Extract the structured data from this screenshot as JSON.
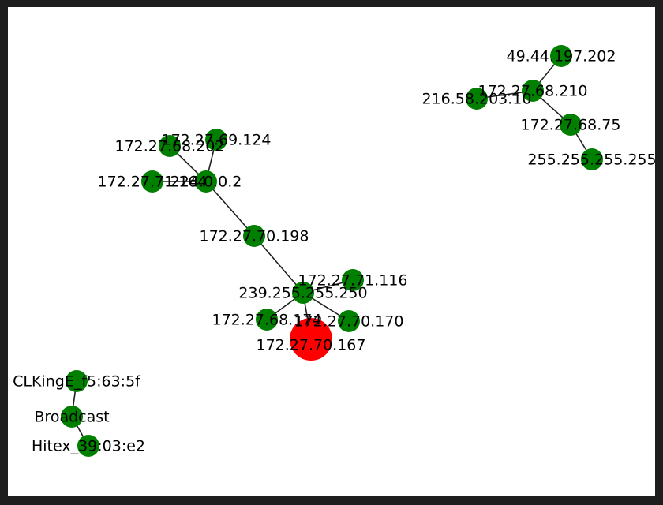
{
  "colors": {
    "frame": "#1e1e1e",
    "background": "#ffffff",
    "node": "#007f00",
    "highlight_node": "#ff0000",
    "edge": "#222222",
    "label": "#000000"
  },
  "graph": {
    "nodes": [
      {
        "id": "n1",
        "label": "49.44.197.202",
        "highlight": false
      },
      {
        "id": "n2",
        "label": "172.27.68.210",
        "highlight": false
      },
      {
        "id": "n3",
        "label": "216.58.203.10",
        "highlight": false
      },
      {
        "id": "n4",
        "label": "172.27.68.75",
        "highlight": false
      },
      {
        "id": "n5",
        "label": "255.255.255.255",
        "highlight": false
      },
      {
        "id": "n6",
        "label": "172.27.68.202",
        "highlight": false
      },
      {
        "id": "n7",
        "label": "172.27.69.124",
        "highlight": false
      },
      {
        "id": "n8",
        "label": "172.27.71.164",
        "highlight": false
      },
      {
        "id": "n9",
        "label": "224.0.0.2",
        "highlight": false
      },
      {
        "id": "n10",
        "label": "172.27.70.198",
        "highlight": false
      },
      {
        "id": "n11",
        "label": "172.27.71.116",
        "highlight": false
      },
      {
        "id": "n12",
        "label": "239.255.255.250",
        "highlight": false
      },
      {
        "id": "n13",
        "label": "172.27.68.174",
        "highlight": false
      },
      {
        "id": "n14",
        "label": "172.27.70.170",
        "highlight": false
      },
      {
        "id": "n15",
        "label": "172.27.70.167",
        "highlight": true
      },
      {
        "id": "n16",
        "label": "CLKingE_f5:63:5f",
        "highlight": false
      },
      {
        "id": "n17",
        "label": "Broadcast",
        "highlight": false
      },
      {
        "id": "n18",
        "label": "Hitex_39:03:e2",
        "highlight": false
      }
    ],
    "edges": [
      [
        "n1",
        "n2"
      ],
      [
        "n2",
        "n3"
      ],
      [
        "n2",
        "n4"
      ],
      [
        "n4",
        "n5"
      ],
      [
        "n6",
        "n9"
      ],
      [
        "n7",
        "n9"
      ],
      [
        "n8",
        "n9"
      ],
      [
        "n9",
        "n10"
      ],
      [
        "n10",
        "n12"
      ],
      [
        "n12",
        "n11"
      ],
      [
        "n12",
        "n13"
      ],
      [
        "n12",
        "n14"
      ],
      [
        "n12",
        "n15"
      ],
      [
        "n16",
        "n17"
      ],
      [
        "n17",
        "n18"
      ]
    ]
  }
}
